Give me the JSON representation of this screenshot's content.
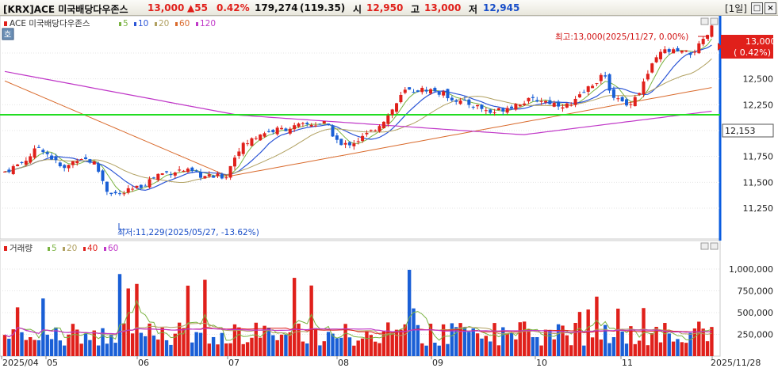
{
  "title_bar": {
    "code": "[KRX]ACE 미국배당다우존스",
    "price": "13,000",
    "change": "▲55",
    "change_pct": "0.42%",
    "volume": "179,274",
    "volume_ratio": "(119.35)",
    "open_label": "시",
    "open": "12,950",
    "high_label": "고",
    "high": "13,000",
    "low_label": "저",
    "low": "12,945",
    "period": "[1일]",
    "minimize_label": "□",
    "close_label": "×"
  },
  "price_panel": {
    "badge": "호",
    "legend": {
      "name": "ACE 미국배당다우존스",
      "ma": [
        {
          "label": "5",
          "color": "#7ab341"
        },
        {
          "label": "10",
          "color": "#2b55d6"
        },
        {
          "label": "20",
          "color": "#b0a060"
        },
        {
          "label": "60",
          "color": "#d96a2c"
        },
        {
          "label": "120",
          "color": "#c038c8"
        }
      ]
    },
    "high_note": "최고:13,000(2025/11/27, 0.00%)",
    "low_note": "최저:11,229(2025/05/27, -13.62%)",
    "current_price": "13,000",
    "current_pct": "( 0.42%)",
    "level_line_value": "12,153",
    "yticks": [
      "12,750",
      "12,500",
      "12,250",
      "12,000",
      "11,750",
      "11,500",
      "11,250"
    ]
  },
  "volume_panel": {
    "legend": {
      "name": "거래량",
      "ma": [
        {
          "label": "5",
          "color": "#7ab341"
        },
        {
          "label": "20",
          "color": "#b0a060"
        },
        {
          "label": "40",
          "color": "#e0201b"
        },
        {
          "label": "60",
          "color": "#c038c8"
        }
      ]
    },
    "yticks": [
      "1,000,000",
      "750,000",
      "500,000",
      "250,000"
    ]
  },
  "x_axis": {
    "labels": [
      "2025/04",
      "05",
      "06",
      "07",
      "08",
      "09",
      "10",
      "11",
      "2025/11/28"
    ]
  },
  "colors": {
    "up": "#e0201b",
    "down": "#1a5fd6",
    "level_line": "#22dd22",
    "axis_bg": "#ffffff",
    "separator": "#0a5ce0"
  }
}
